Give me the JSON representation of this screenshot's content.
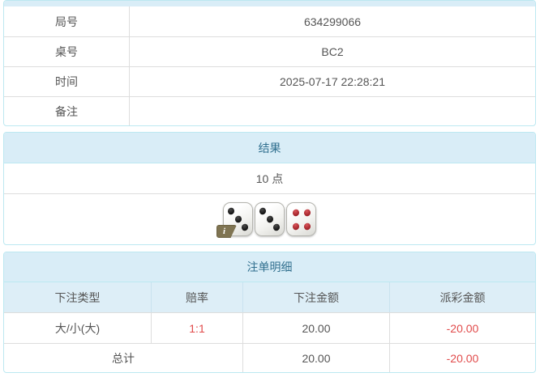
{
  "colors": {
    "panel_border": "#bce8f1",
    "heading_bg": "#d9edf7",
    "heading_text": "#31708f",
    "table_header_bg": "#ddeef7",
    "divider": "#dddddd",
    "body_text": "#555555",
    "negative_red": "#e14b4b",
    "pip_black": "#111111",
    "pip_red": "#9e1f26",
    "info_badge_bg": "#7f7452"
  },
  "game_info": {
    "rows": [
      {
        "label": "局号",
        "value": "634299066"
      },
      {
        "label": "桌号",
        "value": "BC2"
      },
      {
        "label": "时间",
        "value": "2025-07-17 22:28:21"
      },
      {
        "label": "备注",
        "value": ""
      }
    ]
  },
  "result": {
    "title": "结果",
    "points": "10 点",
    "dice": [
      {
        "value": 3,
        "color": "black"
      },
      {
        "value": 3,
        "color": "black"
      },
      {
        "value": 4,
        "color": "red"
      }
    ],
    "info_badge_label": "i"
  },
  "bets": {
    "title": "注单明细",
    "columns": [
      "下注类型",
      "赔率",
      "下注金额",
      "派彩金额"
    ],
    "rows": [
      {
        "type": "大/小(大)",
        "odds": "1:1",
        "amount": "20.00",
        "payout": "-20.00"
      }
    ],
    "total": {
      "label": "总计",
      "amount": "20.00",
      "payout": "-20.00"
    }
  }
}
